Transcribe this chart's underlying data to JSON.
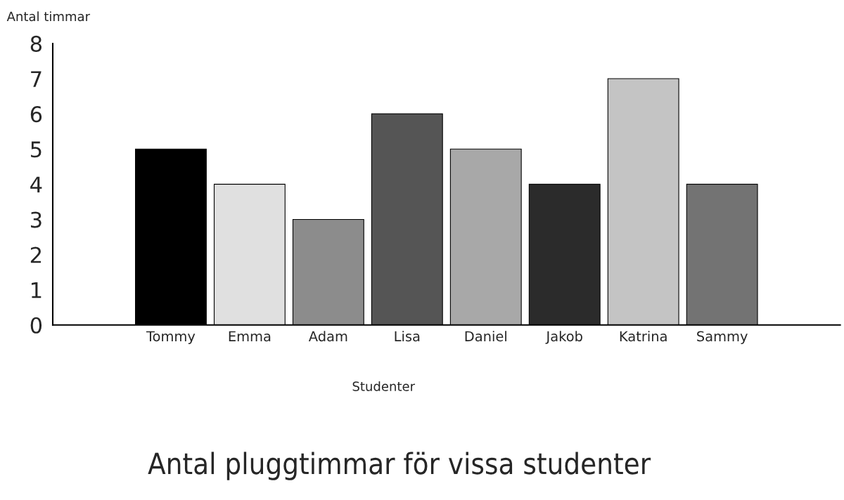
{
  "chart_data": {
    "type": "bar",
    "title": "Antal pluggtimmar för vissa studenter",
    "xlabel": "Studenter",
    "ylabel": "Antal timmar",
    "categories": [
      "Tommy",
      "Emma",
      "Adam",
      "Lisa",
      "Daniel",
      "Jakob",
      "Katrina",
      "Sammy"
    ],
    "values": [
      5,
      4,
      3,
      6,
      5,
      4,
      7,
      4
    ],
    "colors": [
      "#000000",
      "#e0e0e0",
      "#8c8c8c",
      "#555555",
      "#a8a8a8",
      "#2b2b2b",
      "#c4c4c4",
      "#737373"
    ],
    "ylim": [
      0,
      8
    ],
    "yticks": [
      0,
      1,
      2,
      3,
      4,
      5,
      6,
      7,
      8
    ],
    "grid": false,
    "legend": false
  }
}
